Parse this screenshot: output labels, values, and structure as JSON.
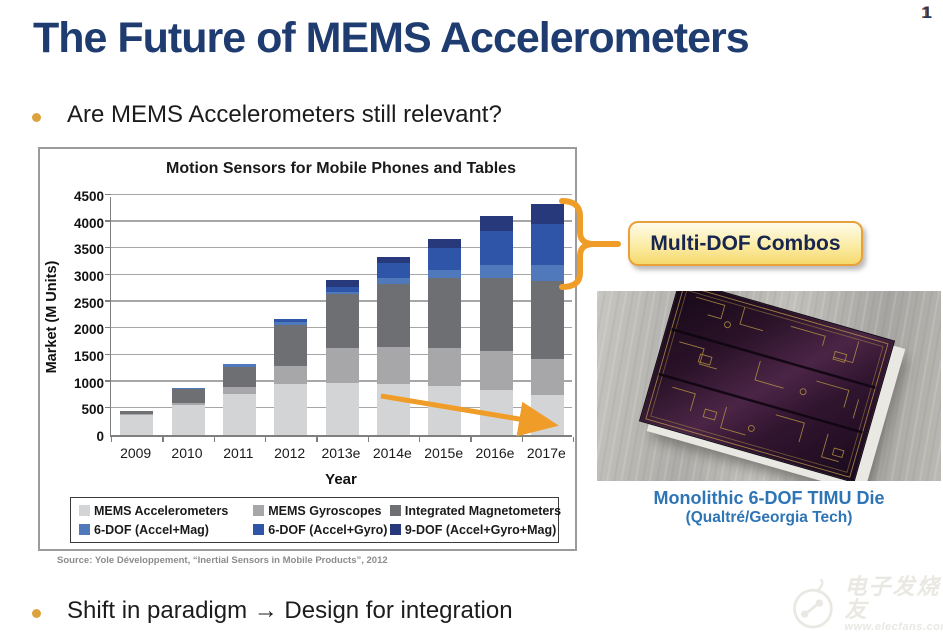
{
  "page_number": "1",
  "title": "The Future of MEMS Accelerometers",
  "bullets": [
    "Are MEMS Accelerometers still relevant?",
    "Shift in paradigm → Design for integration"
  ],
  "chart_data": {
    "type": "bar",
    "stacked": true,
    "title": "Motion Sensors for Mobile Phones and Tables",
    "xlabel": "Year",
    "ylabel": "Market (M Units)",
    "ylim": [
      0,
      4500
    ],
    "yticks": [
      0,
      500,
      1000,
      1500,
      2000,
      2500,
      3000,
      3500,
      4000,
      4500
    ],
    "grid": true,
    "legend_position": "bottom",
    "categories": [
      "2009",
      "2010",
      "2011",
      "2012",
      "2013e",
      "2014e",
      "2015e",
      "2016e",
      "2017e"
    ],
    "series": [
      {
        "name": "MEMS Accelerometers",
        "color": "#d3d4d6",
        "values": [
          380,
          555,
          770,
          960,
          980,
          960,
          920,
          850,
          750
        ]
      },
      {
        "name": "MEMS Gyroscopes",
        "color": "#a7a7a9",
        "values": [
          15,
          45,
          130,
          330,
          660,
          690,
          720,
          720,
          680
        ]
      },
      {
        "name": "Integrated Magnetometers",
        "color": "#6e6f73",
        "values": [
          55,
          255,
          380,
          780,
          1000,
          1190,
          1310,
          1380,
          1460
        ]
      },
      {
        "name": "6-DOF (Accel+Mag)",
        "color": "#4f79bb",
        "values": [
          0,
          35,
          55,
          50,
          40,
          100,
          140,
          230,
          290
        ]
      },
      {
        "name": "6-DOF (Accel+Gyro)",
        "color": "#2f55a8",
        "values": [
          0,
          0,
          0,
          60,
          90,
          290,
          410,
          650,
          770
        ]
      },
      {
        "name": "9-DOF (Accel+Gyro+Mag)",
        "color": "#27397b",
        "values": [
          0,
          0,
          0,
          0,
          130,
          100,
          170,
          280,
          380
        ]
      }
    ],
    "totals": [
      450,
      890,
      1335,
      2180,
      2900,
      3330,
      3670,
      4110,
      4330
    ]
  },
  "callout": {
    "label": "Multi-DOF Combos"
  },
  "photo_caption": {
    "line1": "Monolithic 6-DOF TIMU Die",
    "line2": "(Qualtré/Georgia Tech)"
  },
  "source": "Source: Yole Développement, “Inertial Sensors in Mobile Products”, 2012",
  "watermark": {
    "name": "电子发烧友",
    "url": "www.elecfans.com"
  },
  "colors": {
    "accent_orange": "#f09c28",
    "title_navy": "#1e3c70",
    "caption_blue": "#2e75b6"
  }
}
